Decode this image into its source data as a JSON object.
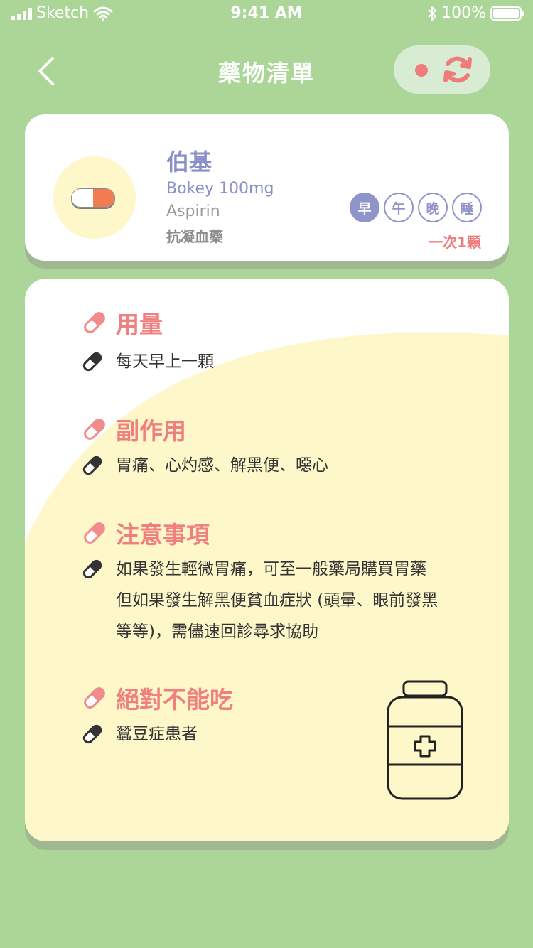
{
  "status_bar": {
    "carrier": "Sketch",
    "time": "9:41 AM",
    "battery": "100%"
  },
  "nav": {
    "title": "藥物清單"
  },
  "medication": {
    "name": "伯基",
    "brand": "Bokey 100mg",
    "generic": "Aspirin",
    "category": "抗凝血藥",
    "times": [
      "早",
      "午",
      "晚",
      "睡"
    ],
    "active_time": "早",
    "dose": "一次1顆"
  },
  "sections": [
    {
      "title": "用量",
      "lines": [
        "每天早上一顆"
      ]
    },
    {
      "title": "副作用",
      "lines": [
        "胃痛、心灼感、解黑便、噁心"
      ]
    },
    {
      "title": "注意事項",
      "lines": [
        "如果發生輕微胃痛，可至一般藥局購買胃藥",
        "但如果發生解黑便貧血症狀 (頭暈、眼前發黑",
        "等等)，需儘速回診尋求協助"
      ]
    },
    {
      "title": "絕對不能吃",
      "lines": [
        "蠶豆症患者"
      ]
    }
  ],
  "colors": {
    "background": "#acd598",
    "accent_pink": "#ef7c7c",
    "accent_purple": "#8f94cb",
    "cream": "#fdf7c9"
  },
  "icons": {
    "back": "chevron-left-icon",
    "sync": "sync-icon",
    "pill": "pill-icon",
    "bottle": "medicine-bottle-icon"
  }
}
